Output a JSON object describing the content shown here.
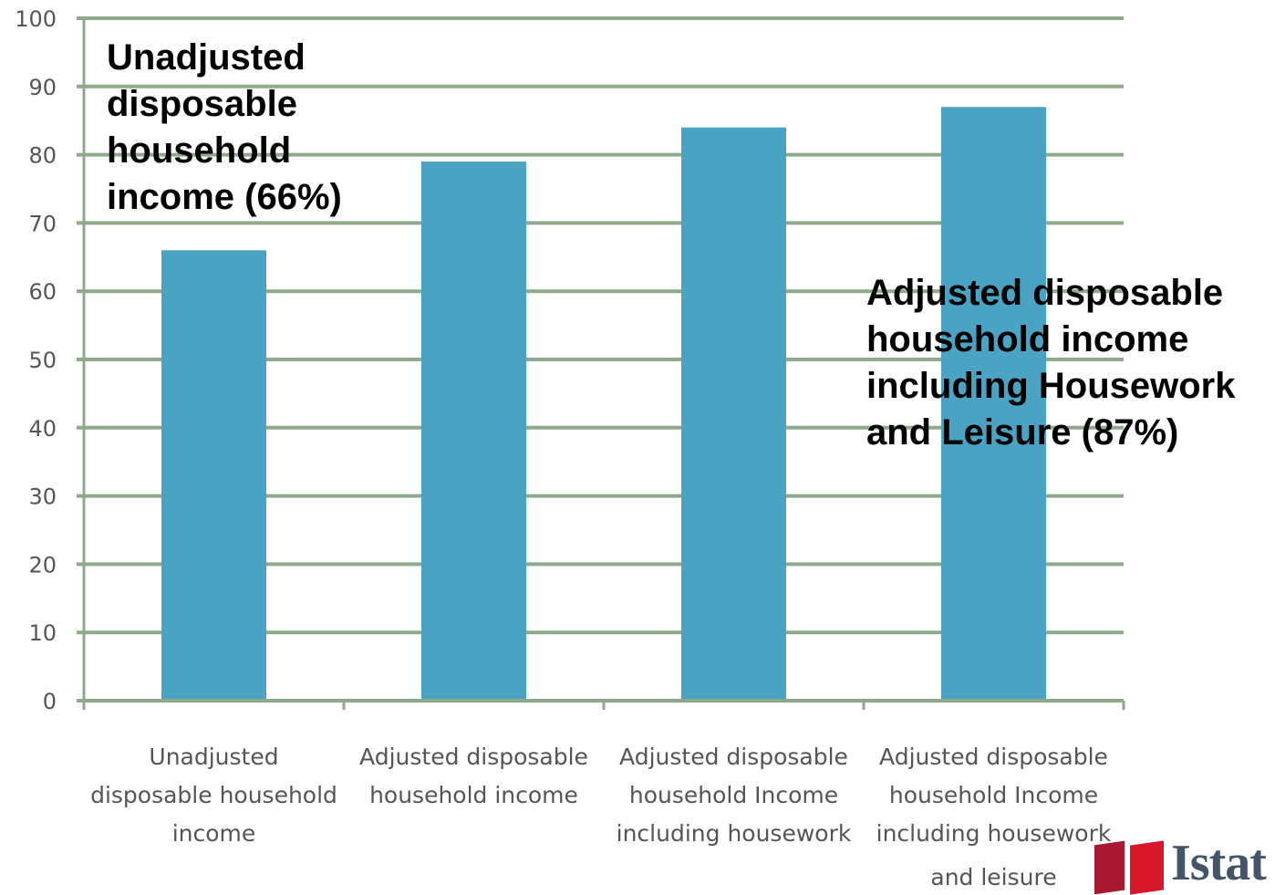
{
  "chart_data": {
    "type": "bar",
    "categories": [
      "Unadjusted\ndisposable household\nincome",
      "Adjusted disposable\nhousehold income",
      "Adjusted disposable\nhousehold Income\nincluding housework",
      "Adjusted disposable\nhousehold Income\nincluding housework\nand leisure"
    ],
    "values": [
      66,
      79,
      84,
      87
    ],
    "ylim": [
      0,
      100
    ],
    "yticks": [
      0,
      10,
      20,
      30,
      40,
      50,
      60,
      70,
      80,
      90,
      100
    ],
    "grid": true,
    "title": "",
    "xlabel": "",
    "ylabel": "",
    "colors": {
      "bar": "#4ba3c3",
      "grid": "#8faa8a",
      "tick_text": "#555555"
    },
    "annotations": [
      "Unadjusted\ndisposable\nhousehold\nincome (66%)",
      "Adjusted disposable\nhousehold income\nincluding Housework\nand Leisure (87%)"
    ]
  },
  "logo": {
    "text": "Istat",
    "colors": [
      "#a71930",
      "#d7182a"
    ]
  }
}
